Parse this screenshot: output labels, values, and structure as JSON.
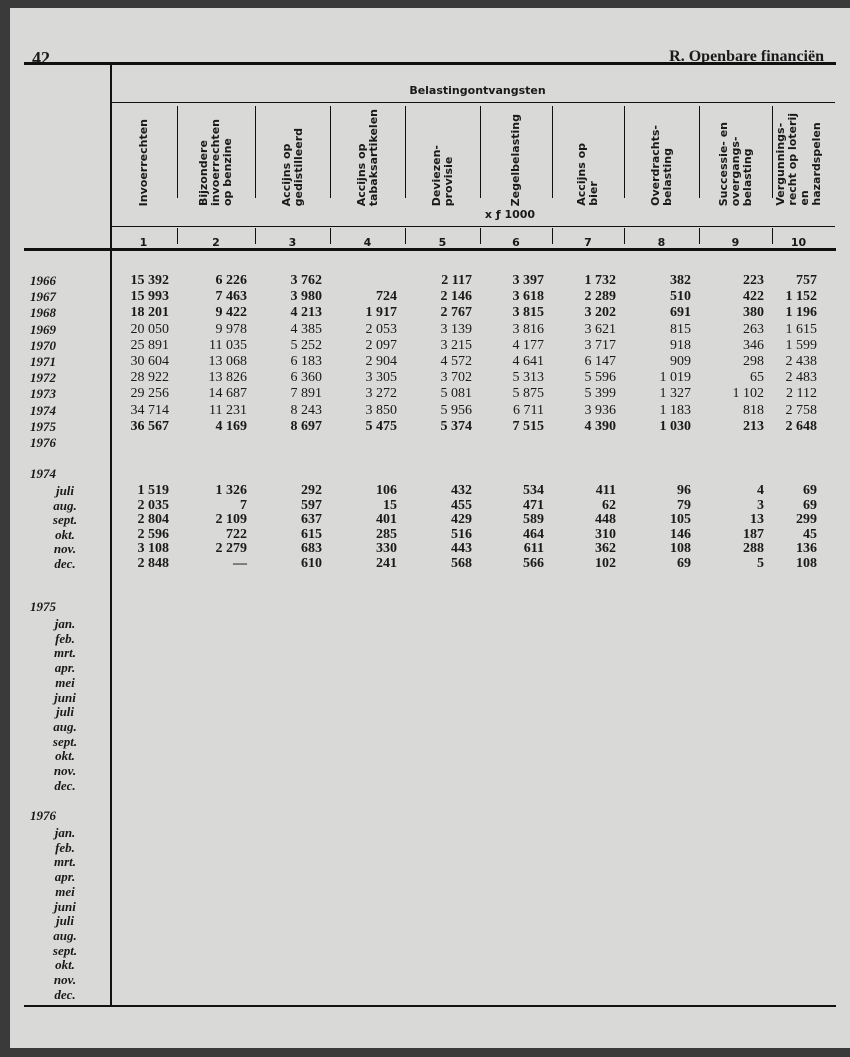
{
  "page_number": "42",
  "section_title": "R.  Openbare financiën",
  "table": {
    "group_header": "Belastingontvangsten",
    "unit": "x ƒ 1000",
    "columns": [
      {
        "num": "1",
        "label": "Invoerrechten"
      },
      {
        "num": "2",
        "label": "Bijzondere\ninvoerrechten\nop benzine"
      },
      {
        "num": "3",
        "label": "Accijns op\ngedistilleerd"
      },
      {
        "num": "4",
        "label": "Accijns op\ntabaksartikelen"
      },
      {
        "num": "5",
        "label": "Deviezen-\nprovisie"
      },
      {
        "num": "6",
        "label": "Zegelbelasting"
      },
      {
        "num": "7",
        "label": "Accijns op\nbier"
      },
      {
        "num": "8",
        "label": "Overdrachts-\nbelasting"
      },
      {
        "num": "9",
        "label": "Successie- en\novergangs-\nbelasting"
      },
      {
        "num": "10",
        "label": "Vergunnings-\nrecht op loterij\nen\nhazardspelen"
      }
    ],
    "years": [
      {
        "label": "1966",
        "values": [
          "15 392",
          "6 226",
          "3 762",
          "",
          "2 117",
          "3 397",
          "1 732",
          "382",
          "223",
          "757"
        ]
      },
      {
        "label": "1967",
        "values": [
          "15 993",
          "7 463",
          "3 980",
          "724",
          "2 146",
          "3 618",
          "2 289",
          "510",
          "422",
          "1 152"
        ]
      },
      {
        "label": "1968",
        "values": [
          "18 201",
          "9 422",
          "4 213",
          "1 917",
          "2 767",
          "3 815",
          "3 202",
          "691",
          "380",
          "1 196"
        ]
      },
      {
        "label": "1969",
        "values": [
          "20 050",
          "9 978",
          "4 385",
          "2 053",
          "3 139",
          "3 816",
          "3 621",
          "815",
          "263",
          "1 615"
        ]
      },
      {
        "label": "1970",
        "values": [
          "25 891",
          "11 035",
          "5 252",
          "2 097",
          "3 215",
          "4 177",
          "3 717",
          "918",
          "346",
          "1 599"
        ]
      },
      {
        "label": "1971",
        "values": [
          "30 604",
          "13 068",
          "6 183",
          "2 904",
          "4 572",
          "4 641",
          "6 147",
          "909",
          "298",
          "2 438"
        ]
      },
      {
        "label": "1972",
        "values": [
          "28 922",
          "13 826",
          "6 360",
          "3 305",
          "3 702",
          "5 313",
          "5 596",
          "1 019",
          "65",
          "2 483"
        ]
      },
      {
        "label": "1973",
        "values": [
          "29 256",
          "14 687",
          "7 891",
          "3 272",
          "5 081",
          "5 875",
          "5 399",
          "1 327",
          "1 102",
          "2 112"
        ]
      },
      {
        "label": "1974",
        "values": [
          "34 714",
          "11 231",
          "8 243",
          "3 850",
          "5 956",
          "6 711",
          "3 936",
          "1 183",
          "818",
          "2 758"
        ]
      },
      {
        "label": "1975",
        "values": [
          "36 567",
          "4 169",
          "8 697",
          "5 475",
          "5 374",
          "7 515",
          "4 390",
          "1 030",
          "213",
          "2 648"
        ]
      },
      {
        "label": "1976",
        "values": [
          "",
          "",
          "",
          "",
          "",
          "",
          "",
          "",
          "",
          ""
        ]
      }
    ],
    "months_1974": {
      "year": "1974",
      "rows": [
        {
          "label": "juli",
          "values": [
            "1 519",
            "1 326",
            "292",
            "106",
            "432",
            "534",
            "411",
            "96",
            "4",
            "69"
          ]
        },
        {
          "label": "aug.",
          "values": [
            "2 035",
            "7",
            "597",
            "15",
            "455",
            "471",
            "62",
            "79",
            "3",
            "69"
          ]
        },
        {
          "label": "sept.",
          "values": [
            "2 804",
            "2 109",
            "637",
            "401",
            "429",
            "589",
            "448",
            "105",
            "13",
            "299"
          ]
        },
        {
          "label": "okt.",
          "values": [
            "2 596",
            "722",
            "615",
            "285",
            "516",
            "464",
            "310",
            "146",
            "187",
            "45"
          ]
        },
        {
          "label": "nov.",
          "values": [
            "3 108",
            "2 279",
            "683",
            "330",
            "443",
            "611",
            "362",
            "108",
            "288",
            "136"
          ]
        },
        {
          "label": "dec.",
          "values": [
            "2 848",
            "—",
            "610",
            "241",
            "568",
            "566",
            "102",
            "69",
            "5",
            "108"
          ]
        }
      ]
    },
    "months_1975": {
      "year": "1975",
      "labels": [
        "jan.",
        "feb.",
        "mrt.",
        "apr.",
        "mei",
        "juni",
        "juli",
        "aug.",
        "sept.",
        "okt.",
        "nov.",
        "dec."
      ]
    },
    "months_1976": {
      "year": "1976",
      "labels": [
        "jan.",
        "feb.",
        "mrt.",
        "apr.",
        "mei",
        "juni",
        "juli",
        "aug.",
        "sept.",
        "okt.",
        "nov.",
        "dec."
      ]
    }
  }
}
